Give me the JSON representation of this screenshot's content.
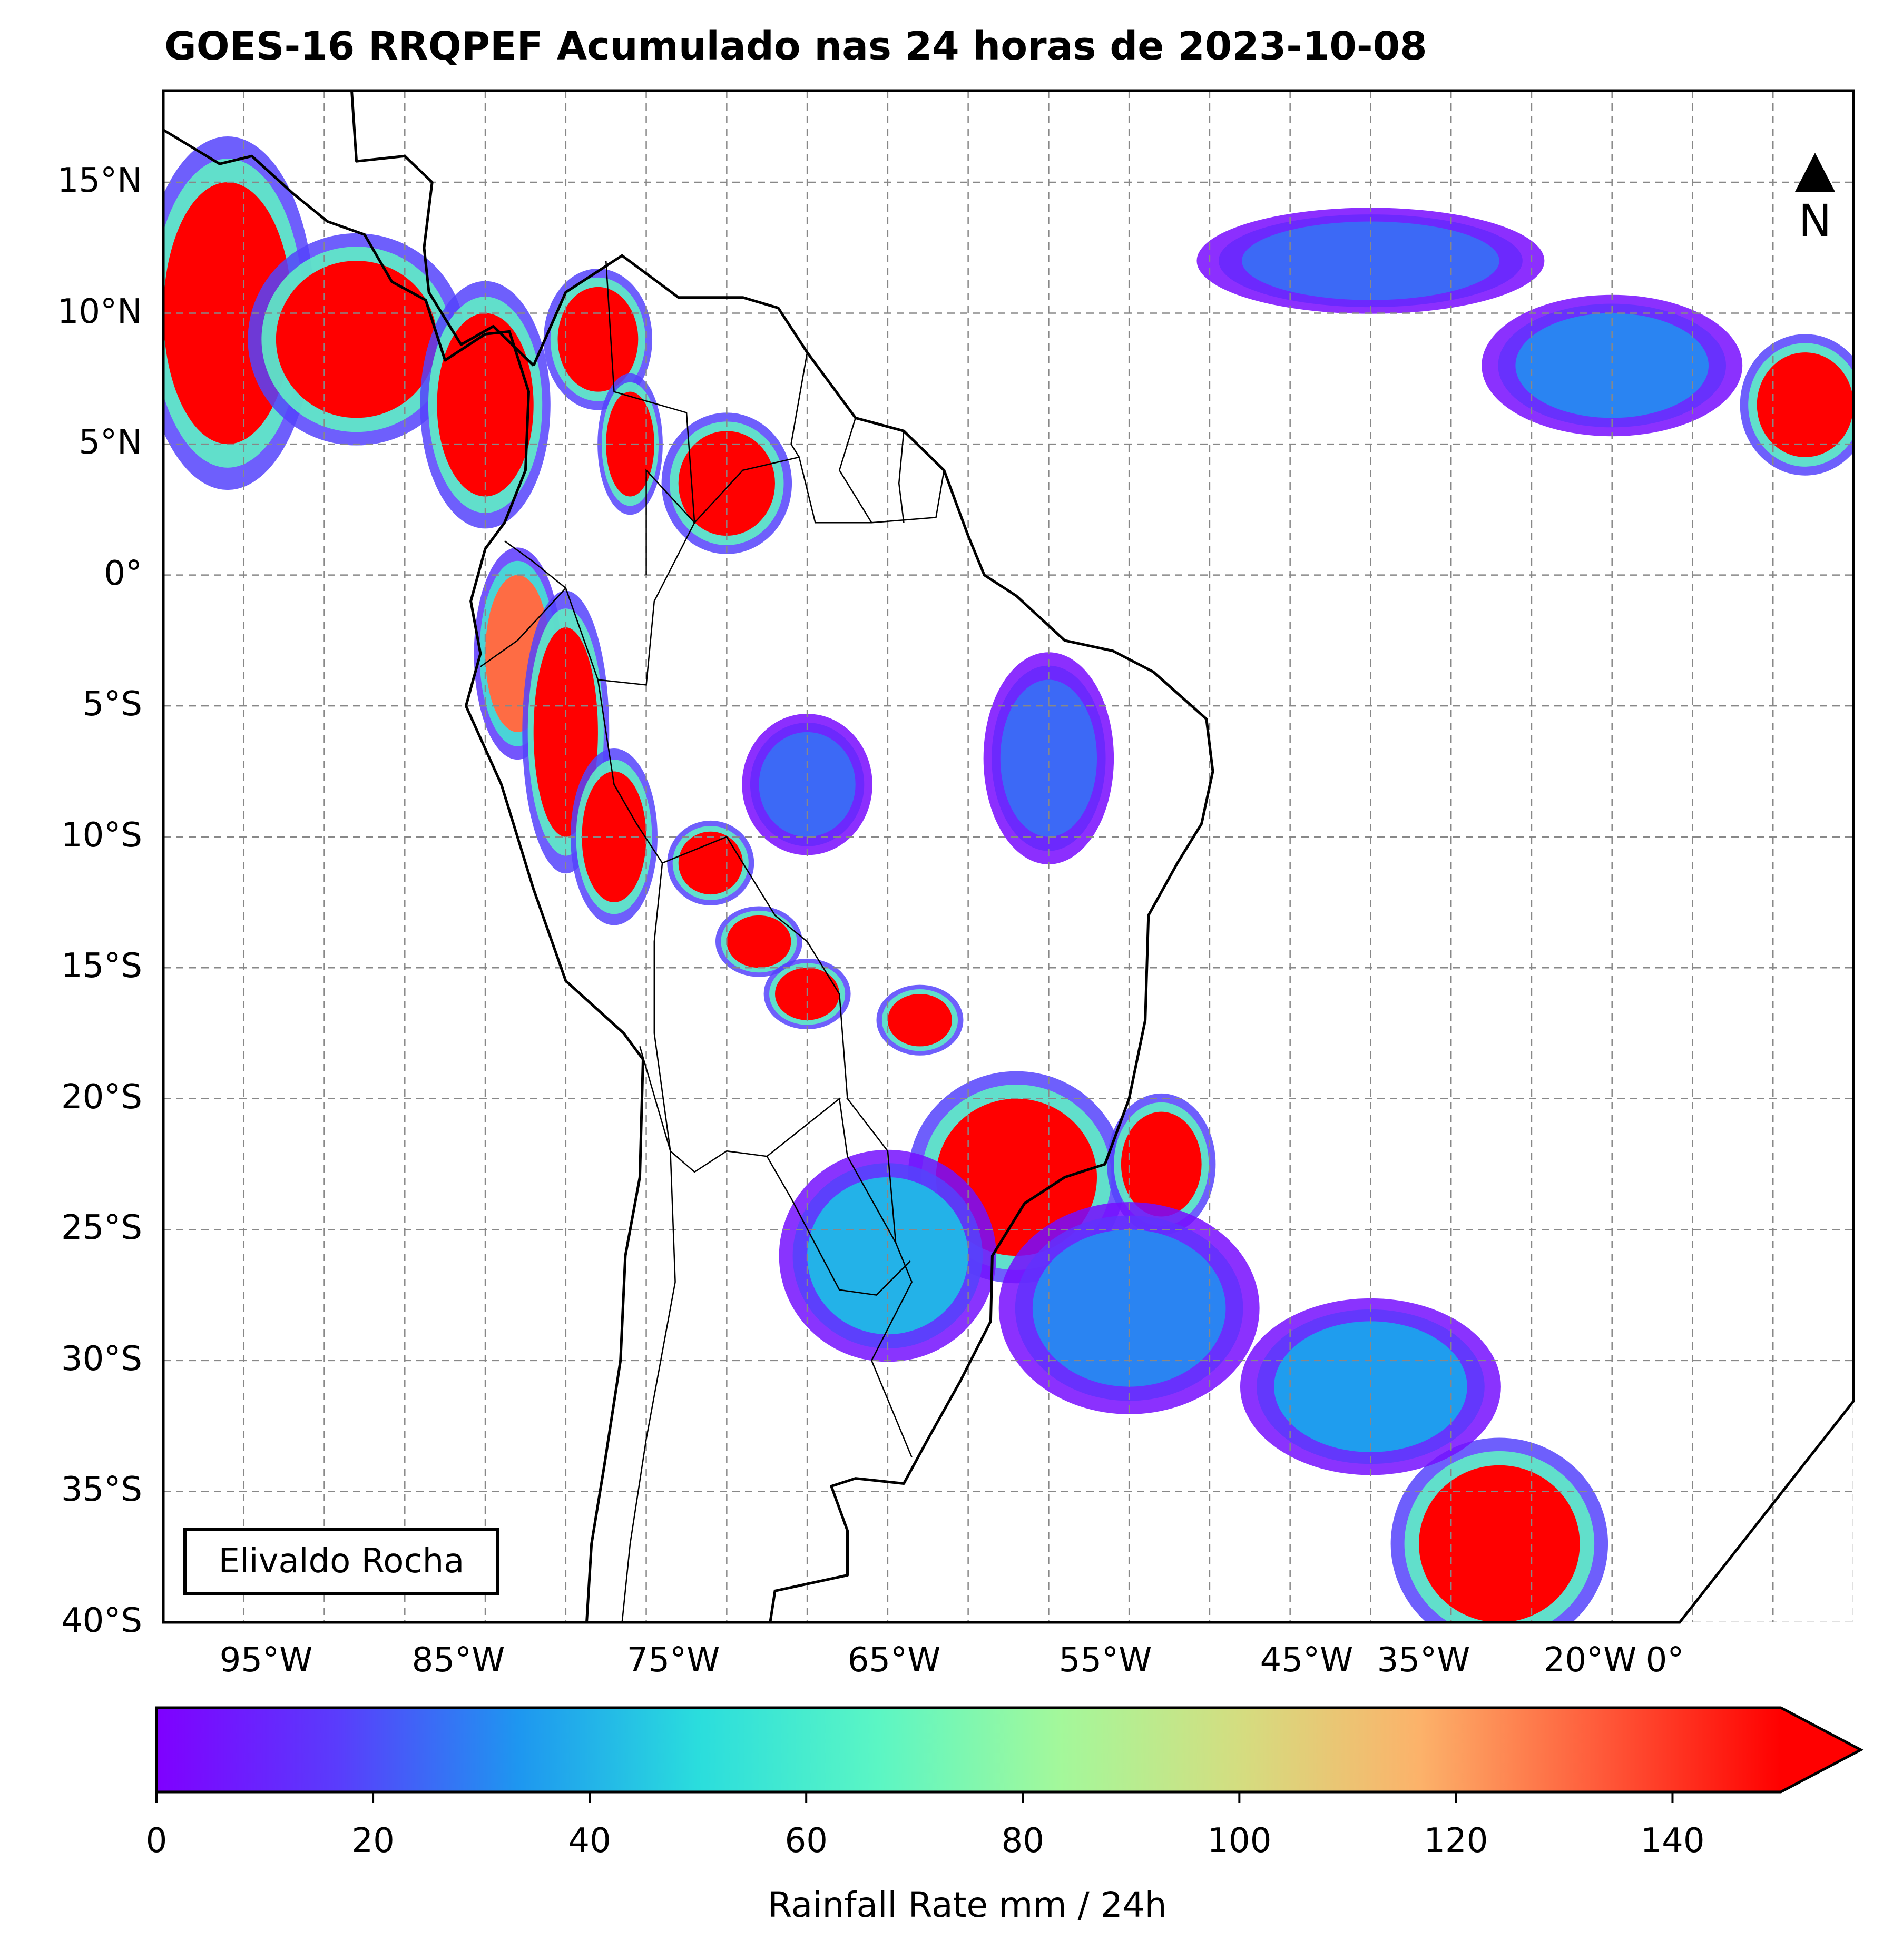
{
  "title": "GOES-16 RRQPEF Acumulado nas 24 horas de 2023-10-08",
  "credit": "Elivaldo Rocha",
  "north_letter": "N",
  "map": {
    "lat_range": [
      -40,
      18.5
    ],
    "lon_range": [
      -100,
      5
    ],
    "lat_ticks": [
      {
        "value": 15,
        "label": "15°N"
      },
      {
        "value": 10,
        "label": "10°N"
      },
      {
        "value": 5,
        "label": "5°N"
      },
      {
        "value": 0,
        "label": "0°"
      },
      {
        "value": -5,
        "label": "5°S"
      },
      {
        "value": -10,
        "label": "10°S"
      },
      {
        "value": -15,
        "label": "15°S"
      },
      {
        "value": -20,
        "label": "20°S"
      },
      {
        "value": -25,
        "label": "25°S"
      },
      {
        "value": -30,
        "label": "30°S"
      },
      {
        "value": -35,
        "label": "35°S"
      },
      {
        "value": -40,
        "label": "40°S"
      }
    ],
    "lon_ticks": [
      {
        "value": -95,
        "label": "95°W"
      },
      {
        "value": -85,
        "label": "85°W"
      },
      {
        "value": -75,
        "label": "75°W"
      },
      {
        "value": -65,
        "label": "65°W"
      },
      {
        "value": -55,
        "label": "55°W"
      },
      {
        "value": -45,
        "label": "45°W"
      },
      {
        "value": -35,
        "label": "35°W"
      },
      {
        "value": -20,
        "label": "20°W"
      },
      {
        "value": 0,
        "label": "0°"
      }
    ],
    "land_color": "#ffffff",
    "ocean_color": "#ffffff",
    "coast_color": "#000000",
    "grid_color": "#888888"
  },
  "colorbar": {
    "min": 0,
    "max": 150,
    "extend": "max",
    "colormap": "rainbow",
    "ticks": [
      0,
      20,
      40,
      60,
      80,
      100,
      120,
      140
    ],
    "label": "Rainfall Rate mm / 24h",
    "stops": [
      "#7f00ff",
      "#5a3cfc",
      "#1e96f0",
      "#2adddd",
      "#5bf6c4",
      "#a3f89b",
      "#d4dd80",
      "#fcb26a",
      "#ff5a3a",
      "#ff0000"
    ]
  },
  "rain_blobs": [
    {
      "lon": -96,
      "lat": 10,
      "rx": 4,
      "ry": 5,
      "mm": 150
    },
    {
      "lon": -88,
      "lat": 9,
      "rx": 5,
      "ry": 3,
      "mm": 150
    },
    {
      "lon": -80,
      "lat": 6.5,
      "rx": 3,
      "ry": 3.5,
      "mm": 150
    },
    {
      "lon": -73,
      "lat": 9,
      "rx": 2.5,
      "ry": 2,
      "mm": 150
    },
    {
      "lon": -71,
      "lat": 5,
      "rx": 1.5,
      "ry": 2,
      "mm": 150
    },
    {
      "lon": -65,
      "lat": 3.5,
      "rx": 3,
      "ry": 2,
      "mm": 150
    },
    {
      "lon": -78,
      "lat": -3,
      "rx": 2,
      "ry": 3,
      "mm": 130
    },
    {
      "lon": -75,
      "lat": -6,
      "rx": 2,
      "ry": 4,
      "mm": 150
    },
    {
      "lon": -72,
      "lat": -10,
      "rx": 2,
      "ry": 2.5,
      "mm": 150
    },
    {
      "lon": -66,
      "lat": -11,
      "rx": 2,
      "ry": 1.2,
      "mm": 150
    },
    {
      "lon": -63,
      "lat": -14,
      "rx": 2,
      "ry": 1,
      "mm": 150
    },
    {
      "lon": -60,
      "lat": -16,
      "rx": 2,
      "ry": 1,
      "mm": 150
    },
    {
      "lon": -53,
      "lat": -17,
      "rx": 2,
      "ry": 1,
      "mm": 150
    },
    {
      "lon": -47,
      "lat": -23,
      "rx": 5,
      "ry": 3,
      "mm": 150
    },
    {
      "lon": -38,
      "lat": -22.5,
      "rx": 2.5,
      "ry": 2,
      "mm": 150
    },
    {
      "lon": -17,
      "lat": -37,
      "rx": 5,
      "ry": 3,
      "mm": 150
    },
    {
      "lon": 2,
      "lat": 6.5,
      "rx": 3,
      "ry": 2,
      "mm": 150
    },
    {
      "lon": -55,
      "lat": -26,
      "rx": 5,
      "ry": 3,
      "mm": 40
    },
    {
      "lon": -40,
      "lat": -28,
      "rx": 6,
      "ry": 3,
      "mm": 30
    },
    {
      "lon": -25,
      "lat": -31,
      "rx": 6,
      "ry": 2.5,
      "mm": 35
    },
    {
      "lon": -45,
      "lat": -7,
      "rx": 3,
      "ry": 3,
      "mm": 25
    },
    {
      "lon": -25,
      "lat": 12,
      "rx": 8,
      "ry": 1.5,
      "mm": 25
    },
    {
      "lon": -10,
      "lat": 8,
      "rx": 6,
      "ry": 2,
      "mm": 30
    },
    {
      "lon": -60,
      "lat": -8,
      "rx": 3,
      "ry": 2,
      "mm": 25
    }
  ]
}
